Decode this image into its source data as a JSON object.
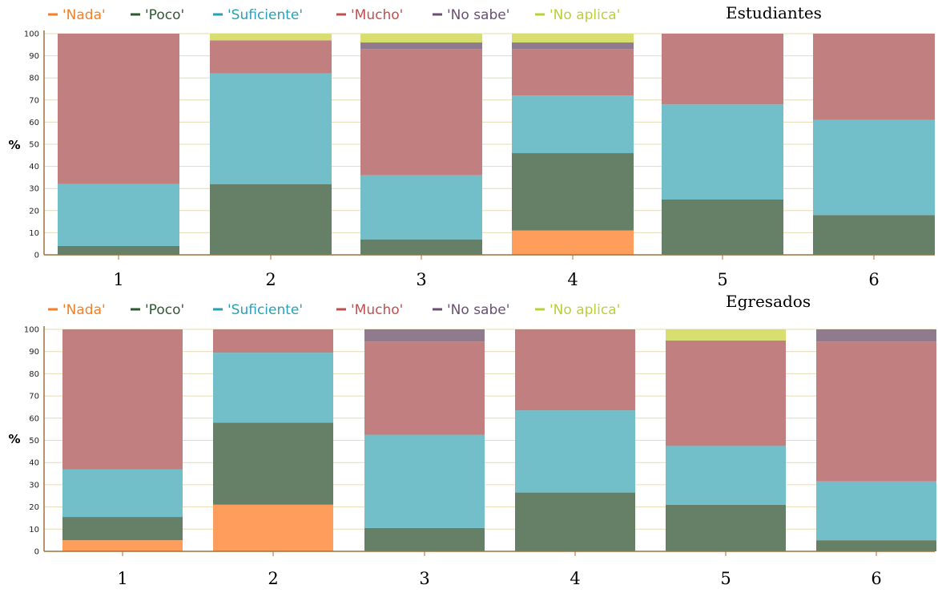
{
  "colors": {
    "Nada": "#ff9e5c",
    "Poco": "#668067",
    "Suficiente": "#72bec9",
    "Mucho": "#c17f80",
    "No sabe": "#8f7a8e",
    "No aplica": "#d8df6f",
    "legend_text": {
      "Nada": "#f57f24",
      "Poco": "#2f5a30",
      "Suficiente": "#27a1b6",
      "Mucho": "#c0504f",
      "No sabe": "#6b4f73",
      "No aplica": "#bcd036"
    },
    "grid": "#e6dcb4",
    "axis": "#a0713b"
  },
  "chart_data": [
    {
      "type": "bar",
      "stacked": true,
      "title": "Estudiantes",
      "ylabel": "%",
      "ylim": [
        0,
        100
      ],
      "yticks": [
        "0",
        "10",
        "20",
        "30",
        "40",
        "50",
        "60",
        "70",
        "80",
        "90",
        "100"
      ],
      "categories": [
        "1",
        "2",
        "3",
        "4",
        "5",
        "6"
      ],
      "legend": [
        "'Nada'",
        "'Poco'",
        "'Suficiente'",
        "'Mucho'",
        "'No sabe'",
        "'No aplica'"
      ],
      "series": [
        {
          "name": "'Nada'",
          "key": "Nada",
          "values": [
            0,
            0,
            0,
            11,
            0,
            0
          ]
        },
        {
          "name": "'Poco'",
          "key": "Poco",
          "values": [
            4,
            32,
            7,
            35,
            25,
            18
          ]
        },
        {
          "name": "'Suficiente'",
          "key": "Suficiente",
          "values": [
            28,
            50,
            29,
            26,
            43,
            43
          ]
        },
        {
          "name": "'Mucho'",
          "key": "Mucho",
          "values": [
            68,
            15,
            57,
            21,
            32,
            39
          ]
        },
        {
          "name": "'No sabe'",
          "key": "No sabe",
          "values": [
            0,
            0,
            3,
            3,
            0,
            0
          ]
        },
        {
          "name": "'No aplica'",
          "key": "No aplica",
          "values": [
            0,
            3,
            4,
            4,
            0,
            0
          ]
        }
      ]
    },
    {
      "type": "bar",
      "stacked": true,
      "title": "Egresados",
      "ylabel": "%",
      "ylim": [
        0,
        100
      ],
      "yticks": [
        "0",
        "10",
        "20",
        "30",
        "40",
        "50",
        "60",
        "70",
        "80",
        "90",
        "100"
      ],
      "categories": [
        "1",
        "2",
        "3",
        "4",
        "5",
        "6"
      ],
      "legend": [
        "'Nada'",
        "'Poco'",
        "'Suficiente'",
        "'Mucho'",
        "'No sabe'",
        "'No aplica'"
      ],
      "series": [
        {
          "name": "'Nada'",
          "key": "Nada",
          "values": [
            5,
            21,
            0,
            0,
            0,
            0
          ]
        },
        {
          "name": "'Poco'",
          "key": "Poco",
          "values": [
            10.5,
            37,
            10.5,
            26.5,
            21,
            5
          ]
        },
        {
          "name": "'Suficiente'",
          "key": "Suficiente",
          "values": [
            21.5,
            31.5,
            42,
            37,
            26.5,
            26.5
          ]
        },
        {
          "name": "'Mucho'",
          "key": "Mucho",
          "values": [
            63,
            10.5,
            42,
            36.5,
            47.5,
            63
          ]
        },
        {
          "name": "'No sabe'",
          "key": "No sabe",
          "values": [
            0,
            0,
            5.5,
            0,
            0,
            5.5
          ]
        },
        {
          "name": "'No aplica'",
          "key": "No aplica",
          "values": [
            0,
            0,
            0,
            0,
            5,
            0
          ]
        }
      ]
    }
  ]
}
